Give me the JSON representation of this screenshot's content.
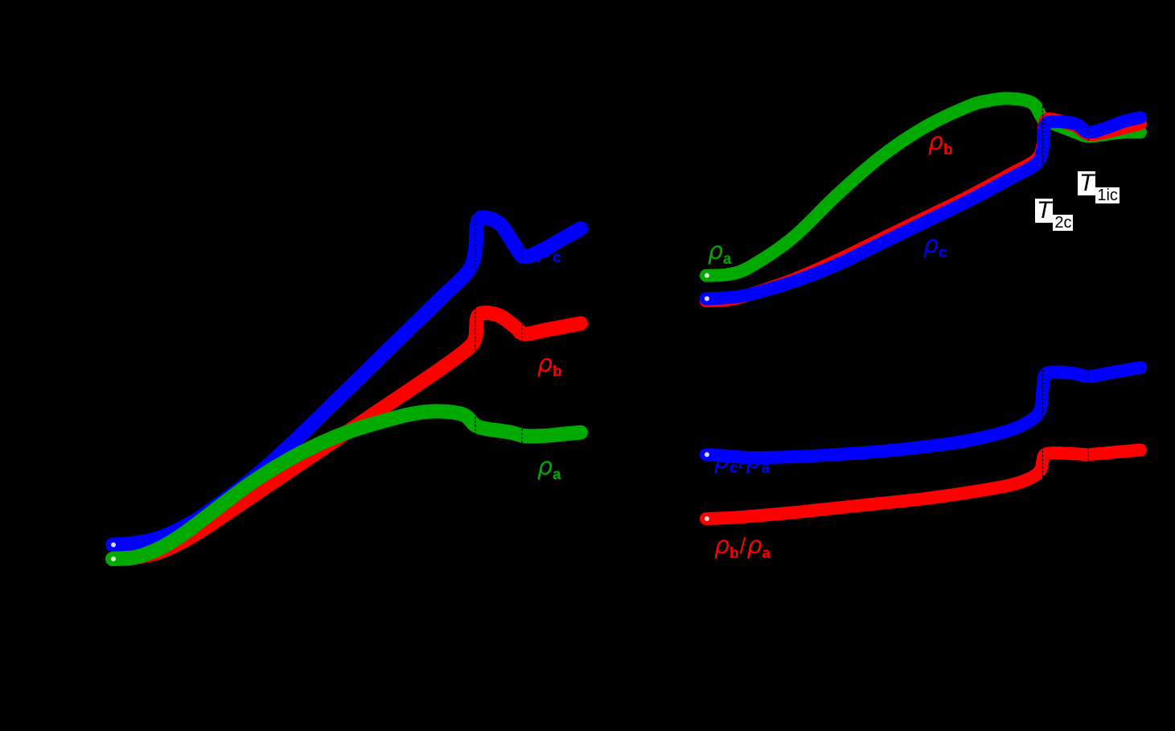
{
  "figure": {
    "background": "#000000",
    "colors": {
      "a": "#00AA00",
      "b": "#FF0000",
      "c": "#0000FF"
    }
  },
  "labels": {
    "left": {
      "rho_c": {
        "sym": "ρ",
        "sub": "c"
      },
      "rho_b": {
        "sym": "ρ",
        "sub": "b"
      },
      "rho_a": {
        "sym": "ρ",
        "sub": "a"
      }
    },
    "top_right": {
      "rho_a": {
        "sym": "ρ",
        "sub": "a"
      },
      "rho_b": {
        "sym": "ρ",
        "sub": "b"
      },
      "rho_c": {
        "sym": "ρ",
        "sub": "c"
      },
      "T2c": {
        "sym": "T",
        "sub": "2c"
      },
      "T1ic": {
        "sym": "T",
        "sub": "1ic"
      }
    },
    "bottom_right": {
      "rho_c_over_a": {
        "num": "ρ",
        "num_sub": "c",
        "slash": "/",
        "den": "ρ",
        "den_sub": "a"
      },
      "rho_b_over_a": {
        "num": "ρ",
        "num_sub": "b",
        "slash": "/",
        "den": "ρ",
        "den_sub": "a"
      }
    }
  },
  "chart_data": [
    {
      "panel": "left",
      "type": "scatter",
      "title": "",
      "xlabel": "",
      "ylabel": "",
      "note": "Axes, ticks and tick labels are rendered black on black background (not visible). Values given in relative units (0 = lowest point, 100 = highest point) vs relative x (0-100).",
      "grid": false,
      "legend": "inline labels at right end of each series",
      "transitions_x": [
        77.5,
        87.5
      ],
      "series": [
        {
          "name": "ρc",
          "color": "#0000FF",
          "x": [
            0,
            5,
            10,
            15,
            20,
            30,
            40,
            50,
            60,
            70,
            76,
            77.5,
            78,
            80,
            83,
            86,
            88,
            92,
            96,
            100
          ],
          "y": [
            4,
            4.5,
            6,
            9,
            13,
            23,
            35,
            48,
            61,
            74,
            82,
            88,
            96,
            97,
            95,
            89,
            86,
            88,
            91,
            94
          ]
        },
        {
          "name": "ρb",
          "color": "#FF0000",
          "x": [
            0,
            5,
            10,
            15,
            20,
            30,
            40,
            50,
            60,
            70,
            76,
            77.5,
            78,
            80,
            83,
            86,
            88,
            92,
            96,
            100
          ],
          "y": [
            0,
            0.5,
            2,
            5,
            9,
            18,
            27,
            36,
            45,
            54,
            60,
            63,
            69,
            70,
            69,
            66,
            64,
            65,
            66,
            67
          ]
        },
        {
          "name": "ρa",
          "color": "#00AA00",
          "x": [
            0,
            5,
            10,
            15,
            20,
            30,
            40,
            50,
            60,
            65,
            70,
            75,
            77.5,
            80,
            85,
            88,
            92,
            96,
            100
          ],
          "y": [
            0,
            0.5,
            3,
            7,
            12,
            22,
            30,
            36,
            40,
            41.5,
            42,
            41,
            38,
            37,
            36,
            35,
            35,
            35.5,
            36
          ]
        }
      ],
      "xlim": [
        0,
        100
      ],
      "ylim": [
        0,
        100
      ]
    },
    {
      "panel": "top_right",
      "type": "scatter",
      "title": "",
      "xlabel": "",
      "ylabel": "",
      "note": "Axes and tick labels not visible (black on black). Relative units.",
      "annotations": [
        "T2c",
        "T1ic"
      ],
      "transitions_x": [
        77.5,
        88
      ],
      "series": [
        {
          "name": "ρa",
          "color": "#00AA00",
          "x": [
            0,
            5,
            10,
            20,
            30,
            40,
            50,
            60,
            65,
            70,
            75,
            77,
            78,
            80,
            85,
            88,
            92,
            96,
            100
          ],
          "y": [
            12,
            12.5,
            16,
            30,
            50,
            68,
            82,
            92,
            95,
            96,
            94,
            88,
            85,
            84,
            80,
            78,
            79,
            80,
            80
          ]
        },
        {
          "name": "ρb",
          "color": "#FF0000",
          "x": [
            0,
            5,
            10,
            20,
            30,
            40,
            50,
            60,
            70,
            76,
            77.5,
            78,
            80,
            85,
            88,
            92,
            96,
            100
          ],
          "y": [
            0,
            0.5,
            3,
            10,
            19,
            29,
            39,
            49,
            60,
            67,
            74,
            85,
            86,
            83,
            79,
            80,
            82,
            84
          ]
        },
        {
          "name": "ρc",
          "color": "#0000FF",
          "x": [
            0,
            5,
            10,
            20,
            30,
            40,
            50,
            60,
            70,
            76,
            77.5,
            78,
            80,
            85,
            88,
            92,
            96,
            100
          ],
          "y": [
            1,
            1.5,
            3,
            9,
            17,
            27,
            37,
            47,
            58,
            65,
            72,
            83,
            85,
            84,
            80,
            82,
            85,
            87
          ]
        }
      ],
      "xlim": [
        0,
        100
      ],
      "ylim": [
        0,
        100
      ]
    },
    {
      "panel": "bottom_right",
      "type": "scatter",
      "title": "",
      "xlabel": "",
      "ylabel": "",
      "note": "Anisotropy ratios; axes not visible. Relative units.",
      "transitions_x": [
        77.5,
        88
      ],
      "series": [
        {
          "name": "ρc/ρa",
          "color": "#0000FF",
          "x": [
            0,
            5,
            10,
            20,
            30,
            40,
            50,
            60,
            70,
            75,
            77,
            77.5,
            78,
            80,
            85,
            88,
            92,
            96,
            100
          ],
          "y": [
            42,
            41,
            40,
            40.5,
            42,
            44,
            47,
            51,
            58,
            65,
            72,
            85,
            94,
            96,
            95,
            93,
            95,
            97,
            99
          ]
        },
        {
          "name": "ρb/ρa",
          "color": "#FF0000",
          "x": [
            0,
            5,
            10,
            20,
            30,
            40,
            50,
            60,
            70,
            75,
            77,
            77.5,
            78,
            80,
            85,
            88,
            92,
            96,
            100
          ],
          "y": [
            0,
            0.5,
            1.5,
            4,
            7,
            10,
            13,
            17,
            22,
            27,
            32,
            38,
            42,
            43,
            42.5,
            42,
            43,
            44,
            45
          ]
        }
      ],
      "xlim": [
        0,
        100
      ],
      "ylim": [
        0,
        100
      ]
    }
  ]
}
